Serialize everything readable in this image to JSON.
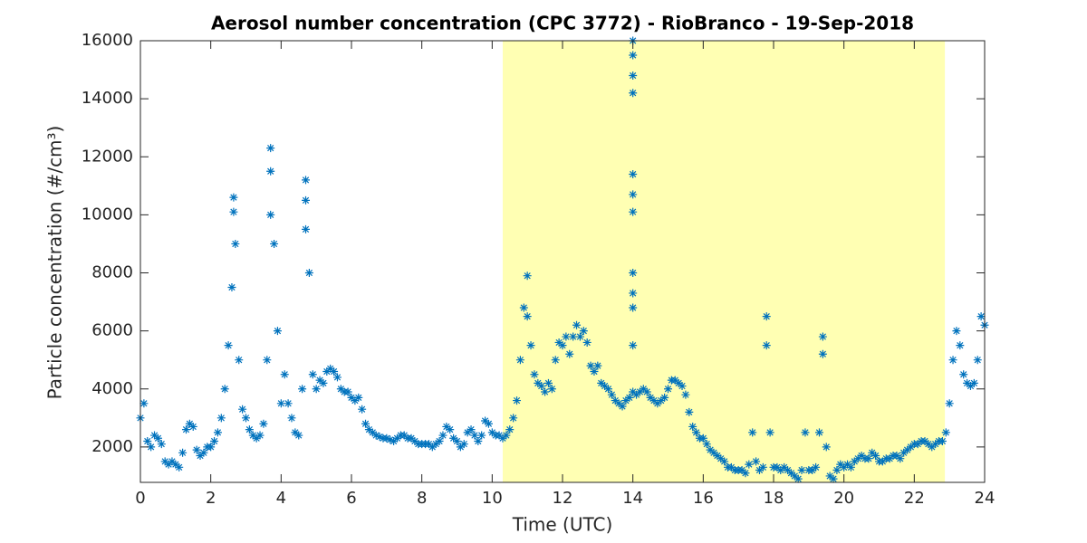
{
  "chart_data": {
    "type": "scatter",
    "title": "Aerosol number concentration (CPC 3772) - RioBranco - 19-Sep-2018",
    "xlabel": "Time (UTC)",
    "ylabel": "Particle concentration (#/cm³)",
    "xlim": [
      0,
      24
    ],
    "ylim": [
      780,
      16000
    ],
    "xticks": [
      0,
      2,
      4,
      6,
      8,
      10,
      12,
      14,
      16,
      18,
      20,
      22,
      24
    ],
    "yticks": [
      2000,
      4000,
      6000,
      8000,
      10000,
      12000,
      14000,
      16000
    ],
    "highlight": {
      "range": [
        10.3,
        22.87
      ],
      "color": "#ffffb3"
    },
    "marker": "asterisk",
    "color": "#0072bd",
    "x": [
      0,
      0.1,
      0.2,
      0.3,
      0.4,
      0.5,
      0.6,
      0.7,
      0.8,
      0.9,
      1,
      1.1,
      1.2,
      1.3,
      1.4,
      1.5,
      1.6,
      1.7,
      1.8,
      1.9,
      2,
      2.1,
      2.2,
      2.3,
      2.4,
      2.5,
      2.6,
      2.7,
      2.8,
      2.9,
      3,
      3.1,
      3.2,
      3.3,
      3.4,
      3.5,
      3.6,
      3.7,
      3.8,
      3.9,
      4,
      4.1,
      4.2,
      4.3,
      4.4,
      4.5,
      4.6,
      4.7,
      4.8,
      4.9,
      5,
      5.1,
      5.2,
      5.3,
      5.4,
      5.5,
      5.6,
      5.7,
      5.8,
      5.9,
      6,
      6.1,
      6.2,
      6.3,
      6.4,
      6.5,
      6.6,
      6.7,
      6.8,
      6.9,
      7,
      7.1,
      7.2,
      7.3,
      7.4,
      7.5,
      7.6,
      7.7,
      7.8,
      7.9,
      8,
      8.1,
      8.2,
      8.3,
      8.4,
      8.5,
      8.6,
      8.7,
      8.8,
      8.9,
      9,
      9.1,
      9.2,
      9.3,
      9.4,
      9.5,
      9.6,
      9.7,
      9.8,
      9.9,
      10,
      10.1,
      10.2,
      10.3,
      10.4,
      10.5,
      10.6,
      10.7,
      10.8,
      10.9,
      11,
      11.1,
      11.2,
      11.3,
      11.4,
      11.5,
      11.6,
      11.7,
      11.8,
      11.9,
      12,
      12.1,
      12.2,
      12.3,
      12.4,
      12.5,
      12.6,
      12.7,
      12.8,
      12.9,
      13,
      13.1,
      13.2,
      13.3,
      13.4,
      13.5,
      13.6,
      13.7,
      13.8,
      13.9,
      14,
      14.1,
      14.2,
      14.3,
      14.4,
      14.5,
      14.6,
      14.7,
      14.8,
      14.9,
      15,
      15.1,
      15.2,
      15.3,
      15.4,
      15.5,
      15.6,
      15.7,
      15.8,
      15.9,
      16,
      16.1,
      16.2,
      16.3,
      16.4,
      16.5,
      16.6,
      16.7,
      16.8,
      16.9,
      17,
      17.1,
      17.2,
      17.3,
      17.4,
      17.5,
      17.6,
      17.7,
      17.8,
      17.9,
      18,
      18.1,
      18.2,
      18.3,
      18.4,
      18.5,
      18.6,
      18.7,
      18.8,
      18.9,
      19,
      19.1,
      19.2,
      19.3,
      19.4,
      19.5,
      19.6,
      19.7,
      19.8,
      19.9,
      20,
      20.1,
      20.2,
      20.3,
      20.4,
      20.5,
      20.6,
      20.7,
      20.8,
      20.9,
      21,
      21.1,
      21.2,
      21.3,
      21.4,
      21.5,
      21.6,
      21.7,
      21.8,
      21.9,
      22,
      22.1,
      22.2,
      22.3,
      22.4,
      22.5,
      22.6,
      22.7,
      22.8,
      22.9,
      23,
      23.1,
      23.2,
      23.3,
      23.4,
      23.5,
      23.6,
      23.7,
      23.8,
      23.9,
      24,
      2.65,
      2.65,
      3.7,
      3.7,
      4.7,
      4.7,
      14,
      14,
      14,
      14,
      14,
      14,
      14,
      14,
      14,
      14,
      14,
      17.8,
      19.4,
      11
    ],
    "y": [
      3000,
      3500,
      2200,
      2000,
      2400,
      2300,
      2100,
      1500,
      1400,
      1500,
      1400,
      1300,
      1800,
      2600,
      2800,
      2700,
      1900,
      1700,
      1800,
      2000,
      2000,
      2200,
      2500,
      3000,
      4000,
      5500,
      7500,
      9000,
      5000,
      3300,
      3000,
      2600,
      2400,
      2300,
      2400,
      2800,
      5000,
      10000,
      9000,
      6000,
      3500,
      4500,
      3500,
      3000,
      2500,
      2400,
      4000,
      9500,
      8000,
      4500,
      4000,
      4300,
      4200,
      4600,
      4700,
      4600,
      4400,
      4000,
      3900,
      3900,
      3700,
      3600,
      3700,
      3300,
      2800,
      2600,
      2500,
      2400,
      2350,
      2300,
      2300,
      2250,
      2200,
      2300,
      2400,
      2400,
      2300,
      2300,
      2200,
      2100,
      2100,
      2100,
      2100,
      2000,
      2100,
      2200,
      2400,
      2700,
      2600,
      2300,
      2200,
      2000,
      2100,
      2500,
      2600,
      2400,
      2200,
      2400,
      2900,
      2800,
      2500,
      2400,
      2400,
      2300,
      2400,
      2600,
      3000,
      3600,
      5000,
      6800,
      6500,
      5500,
      4500,
      4200,
      4100,
      3900,
      4200,
      4000,
      5000,
      5600,
      5500,
      5800,
      5200,
      5800,
      6200,
      5800,
      6000,
      5600,
      4800,
      4600,
      4800,
      4200,
      4100,
      4000,
      3800,
      3600,
      3500,
      3400,
      3600,
      3700,
      3900,
      3800,
      3900,
      4000,
      3900,
      3700,
      3600,
      3500,
      3600,
      3700,
      4000,
      4300,
      4300,
      4200,
      4100,
      3800,
      3200,
      2700,
      2500,
      2300,
      2300,
      2100,
      1900,
      1800,
      1700,
      1600,
      1500,
      1300,
      1300,
      1200,
      1200,
      1200,
      1100,
      1400,
      2500,
      1500,
      1200,
      1300,
      5500,
      2500,
      1300,
      1300,
      1200,
      1300,
      1200,
      1100,
      1000,
      900,
      1200,
      2500,
      1200,
      1200,
      1300,
      2500,
      5200,
      2000,
      1000,
      900,
      1200,
      1400,
      1300,
      1400,
      1300,
      1500,
      1600,
      1700,
      1600,
      1600,
      1800,
      1700,
      1500,
      1500,
      1600,
      1600,
      1700,
      1700,
      1600,
      1800,
      1900,
      2000,
      2100,
      2100,
      2200,
      2200,
      2100,
      2000,
      2100,
      2200,
      2200,
      2500,
      3500,
      5000,
      6000,
      5500,
      4500,
      4200,
      4100,
      4200,
      5000,
      6500,
      6200,
      10600,
      10100,
      12300,
      11500,
      11200,
      10500,
      16000,
      15500,
      14800,
      14200,
      11400,
      10700,
      10100,
      8000,
      7300,
      6800,
      5500,
      6500,
      5800,
      7900
    ]
  }
}
